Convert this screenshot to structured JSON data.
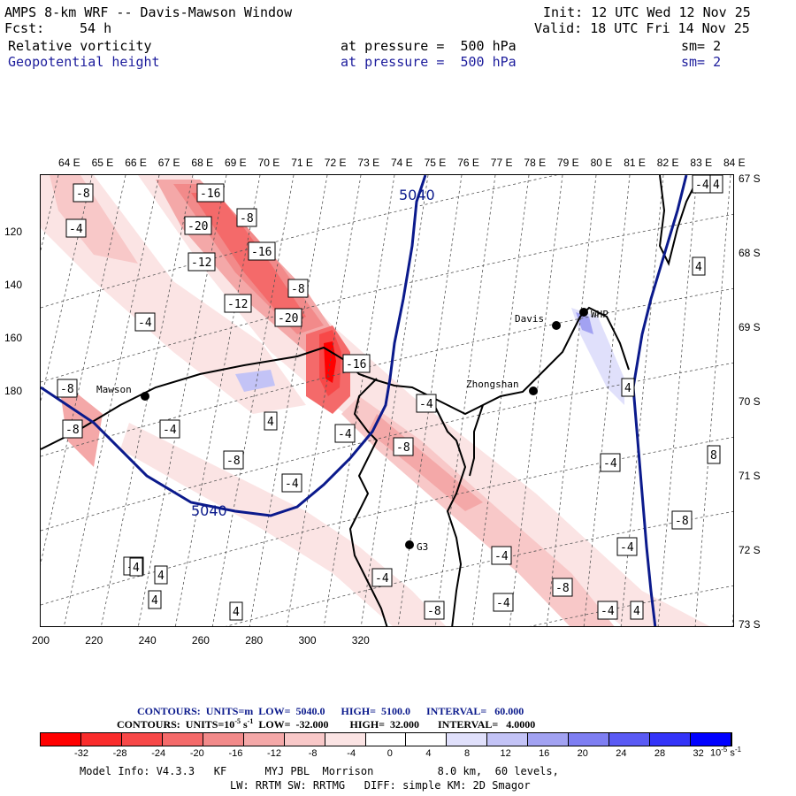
{
  "header": {
    "title": "AMPS 8-km WRF -- Davis-Mawson Window",
    "fcst_label": "Fcst:",
    "fcst_value": "54 h",
    "init": "Init: 12 UTC Wed 12 Nov 25",
    "valid": "Valid: 18 UTC Fri 14 Nov 25",
    "field1": "Relative vorticity",
    "field1_pressure": "at pressure =  500 hPa",
    "field1_sm": "sm= 2",
    "field2": "Geopotential height",
    "field2_pressure": "at pressure =  500 hPa",
    "field2_sm": "sm= 2"
  },
  "map": {
    "lon_labels": [
      "64 E",
      "65 E",
      "66 E",
      "67 E",
      "68 E",
      "69 E",
      "70 E",
      "71 E",
      "72 E",
      "73 E",
      "74 E",
      "75 E",
      "76 E",
      "77 E",
      "78 E",
      "79 E",
      "80 E",
      "81 E",
      "82 E",
      "83 E",
      "84 E"
    ],
    "lat_labels": [
      "67 S",
      "68 S",
      "69 S",
      "70 S",
      "71 S",
      "72 S",
      "73 S"
    ],
    "x_ticks": [
      "200",
      "220",
      "240",
      "260",
      "280",
      "300",
      "320"
    ],
    "y_ticks": [
      "120",
      "140",
      "160",
      "180"
    ],
    "stations": [
      "Davis",
      "WHP",
      "Mawson",
      "Zhongshan",
      "G3"
    ],
    "height_labels": [
      "5040",
      "5040"
    ],
    "vort_labels": [
      "-8",
      "-16",
      "-8",
      "-20",
      "-16",
      "-12",
      "-8",
      "-12",
      "-4",
      "-20",
      "-16",
      "-8",
      "-4",
      "4",
      "-4",
      "-4",
      "-8",
      "-4",
      "-4",
      "-8",
      "4",
      "8",
      "-4",
      "4",
      "-8",
      "-4",
      "4",
      "4",
      "-4",
      "4",
      "-8",
      "-4",
      "-4",
      "-4",
      "-8",
      "-4",
      "4",
      "-4",
      "-8",
      "4",
      "4"
    ],
    "colors": {
      "height_contour": "#0b1a8c",
      "coast": "#000000",
      "station": "#000000"
    }
  },
  "footer": {
    "contours1": "CONTOURS:  UNITS=m  LOW=  5040.0      HIGH=  5100.0      INTERVAL=   60.000",
    "contours2_pre": "CONTOURS:  UNITS=10",
    "contours2_exp": "-5",
    "contours2_post": " s",
    "contours2_exp2": "-1",
    "contours2_rest": "  LOW=  -32.000        HIGH=  32.000       INTERVAL=   4.0000",
    "model_info": "Model Info: V4.3.3   KF      MYJ PBL  Morrison          8.0 km,  60 levels,",
    "model_info2": "LW: RRTM SW: RRTMG   DIFF: simple KM: 2D Smagor"
  },
  "colorbar": {
    "ticks": [
      "-32",
      "-28",
      "-24",
      "-20",
      "-16",
      "-12",
      "-8",
      "-4",
      "0",
      "4",
      "8",
      "12",
      "16",
      "20",
      "24",
      "28",
      "32"
    ],
    "unit": "10",
    "unit_exp": "-5",
    "unit_s": " s",
    "unit_exp2": "-1",
    "colors": [
      "#ff0000",
      "#fa2c2c",
      "#f74848",
      "#f46a6a",
      "#f28a8a",
      "#f4a8a8",
      "#f8c8c8",
      "#fbe4e4",
      "#ffffff",
      "#ffffff",
      "#e0e0fb",
      "#c3c3f6",
      "#a2a2f2",
      "#7e7ef2",
      "#5a5af4",
      "#3434f8",
      "#0000ff"
    ]
  }
}
